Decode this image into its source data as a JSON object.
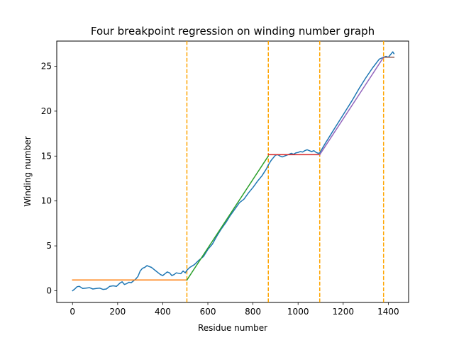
{
  "chart_data": {
    "type": "line",
    "title": "Four breakpoint regression on winding number graph",
    "xlabel": "Residue number",
    "ylabel": "Winding number",
    "xlim": [
      -70,
      1490
    ],
    "ylim": [
      -1.3,
      27.8
    ],
    "xticks": [
      0,
      200,
      400,
      600,
      800,
      1000,
      1200,
      1400
    ],
    "yticks": [
      0,
      5,
      10,
      15,
      20,
      25
    ],
    "grid": false,
    "breakpoints": [
      507,
      868,
      1096,
      1379
    ],
    "breakpoint_color": "#ffa500",
    "series": [
      {
        "role": "data",
        "color": "#1f77b4",
        "x": [
          0,
          10,
          20,
          30,
          45,
          60,
          75,
          90,
          105,
          120,
          135,
          150,
          165,
          180,
          195,
          210,
          220,
          230,
          240,
          250,
          260,
          270,
          280,
          290,
          300,
          310,
          320,
          330,
          340,
          350,
          360,
          370,
          380,
          390,
          400,
          410,
          420,
          430,
          440,
          450,
          460,
          470,
          480,
          490,
          500,
          507,
          520,
          540,
          560,
          580,
          600,
          620,
          640,
          660,
          680,
          700,
          720,
          740,
          760,
          780,
          800,
          820,
          840,
          860,
          868,
          880,
          890,
          900,
          910,
          920,
          930,
          940,
          950,
          960,
          970,
          980,
          990,
          1000,
          1010,
          1020,
          1030,
          1040,
          1050,
          1060,
          1070,
          1080,
          1090,
          1096,
          1120,
          1150,
          1180,
          1210,
          1240,
          1270,
          1300,
          1330,
          1360,
          1379,
          1390,
          1400,
          1410,
          1420,
          1425
        ],
        "y": [
          0.0,
          0.2,
          0.45,
          0.5,
          0.25,
          0.3,
          0.35,
          0.2,
          0.25,
          0.3,
          0.15,
          0.2,
          0.5,
          0.55,
          0.5,
          0.85,
          1.0,
          0.7,
          0.8,
          0.95,
          0.9,
          1.1,
          1.3,
          1.6,
          2.2,
          2.5,
          2.6,
          2.8,
          2.7,
          2.6,
          2.4,
          2.2,
          2.0,
          1.8,
          1.7,
          1.9,
          2.1,
          2.0,
          1.7,
          1.8,
          2.0,
          1.95,
          1.9,
          2.2,
          2.0,
          2.3,
          2.6,
          2.9,
          3.4,
          3.8,
          4.6,
          5.2,
          6.1,
          6.9,
          7.6,
          8.4,
          9.1,
          9.8,
          10.2,
          10.9,
          11.5,
          12.2,
          12.8,
          13.6,
          14.0,
          14.5,
          14.8,
          15.1,
          15.15,
          15.0,
          14.9,
          15.0,
          15.1,
          15.2,
          15.3,
          15.2,
          15.35,
          15.4,
          15.5,
          15.45,
          15.6,
          15.7,
          15.6,
          15.5,
          15.6,
          15.4,
          15.3,
          15.35,
          16.4,
          17.6,
          18.8,
          20.0,
          21.2,
          22.5,
          23.7,
          24.8,
          25.8,
          26.0,
          26.1,
          26.0,
          26.3,
          26.6,
          26.4
        ]
      },
      {
        "role": "fit",
        "color": "#ff7f0e",
        "x": [
          0,
          507
        ],
        "y": [
          1.2,
          1.2
        ]
      },
      {
        "role": "fit",
        "color": "#2ca02c",
        "x": [
          507,
          868
        ],
        "y": [
          1.2,
          15.0
        ]
      },
      {
        "role": "fit",
        "color": "#d62728",
        "x": [
          868,
          1096
        ],
        "y": [
          15.15,
          15.15
        ]
      },
      {
        "role": "fit",
        "color": "#9467bd",
        "x": [
          1096,
          1379
        ],
        "y": [
          15.15,
          26.0
        ]
      },
      {
        "role": "fit",
        "color": "#8c564b",
        "x": [
          1379,
          1425
        ],
        "y": [
          26.0,
          26.0
        ]
      }
    ]
  }
}
